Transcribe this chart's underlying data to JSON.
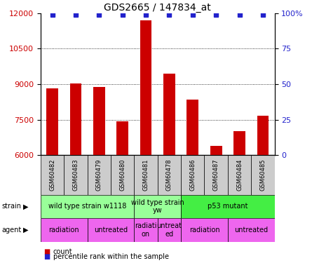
{
  "title": "GDS2665 / 147834_at",
  "samples": [
    "GSM60482",
    "GSM60483",
    "GSM60479",
    "GSM60480",
    "GSM60481",
    "GSM60478",
    "GSM60486",
    "GSM60487",
    "GSM60484",
    "GSM60485"
  ],
  "counts": [
    8820,
    9020,
    8870,
    7430,
    11700,
    9450,
    8350,
    6380,
    7020,
    7680
  ],
  "percentiles": [
    100,
    100,
    100,
    100,
    100,
    100,
    100,
    100,
    100,
    100
  ],
  "ylim_left": [
    6000,
    12000
  ],
  "ylim_right": [
    0,
    100
  ],
  "yticks_left": [
    6000,
    7500,
    9000,
    10500,
    12000
  ],
  "yticks_right": [
    0,
    25,
    50,
    75,
    100
  ],
  "bar_color": "#cc0000",
  "dot_color": "#2222cc",
  "grid_color": "#000000",
  "strain_groups": [
    {
      "label": "wild type strain w1118",
      "span": [
        0,
        4
      ],
      "color": "#99ff99"
    },
    {
      "label": "wild type strain\nyw",
      "span": [
        4,
        6
      ],
      "color": "#99ff99"
    },
    {
      "label": "p53 mutant",
      "span": [
        6,
        10
      ],
      "color": "#44ee44"
    }
  ],
  "agent_groups": [
    {
      "label": "radiation",
      "span": [
        0,
        2
      ],
      "color": "#ee66ee"
    },
    {
      "label": "untreated",
      "span": [
        2,
        4
      ],
      "color": "#ee66ee"
    },
    {
      "label": "radiati\non",
      "span": [
        4,
        5
      ],
      "color": "#ee66ee"
    },
    {
      "label": "untreat\ned",
      "span": [
        5,
        6
      ],
      "color": "#ee66ee"
    },
    {
      "label": "radiation",
      "span": [
        6,
        8
      ],
      "color": "#ee66ee"
    },
    {
      "label": "untreated",
      "span": [
        8,
        10
      ],
      "color": "#ee66ee"
    }
  ],
  "sample_bg_color": "#cccccc",
  "bar_width": 0.5,
  "tick_fontsize": 8,
  "title_fontsize": 10,
  "label_fontsize": 7,
  "sample_fontsize": 6,
  "cell_fontsize": 7
}
